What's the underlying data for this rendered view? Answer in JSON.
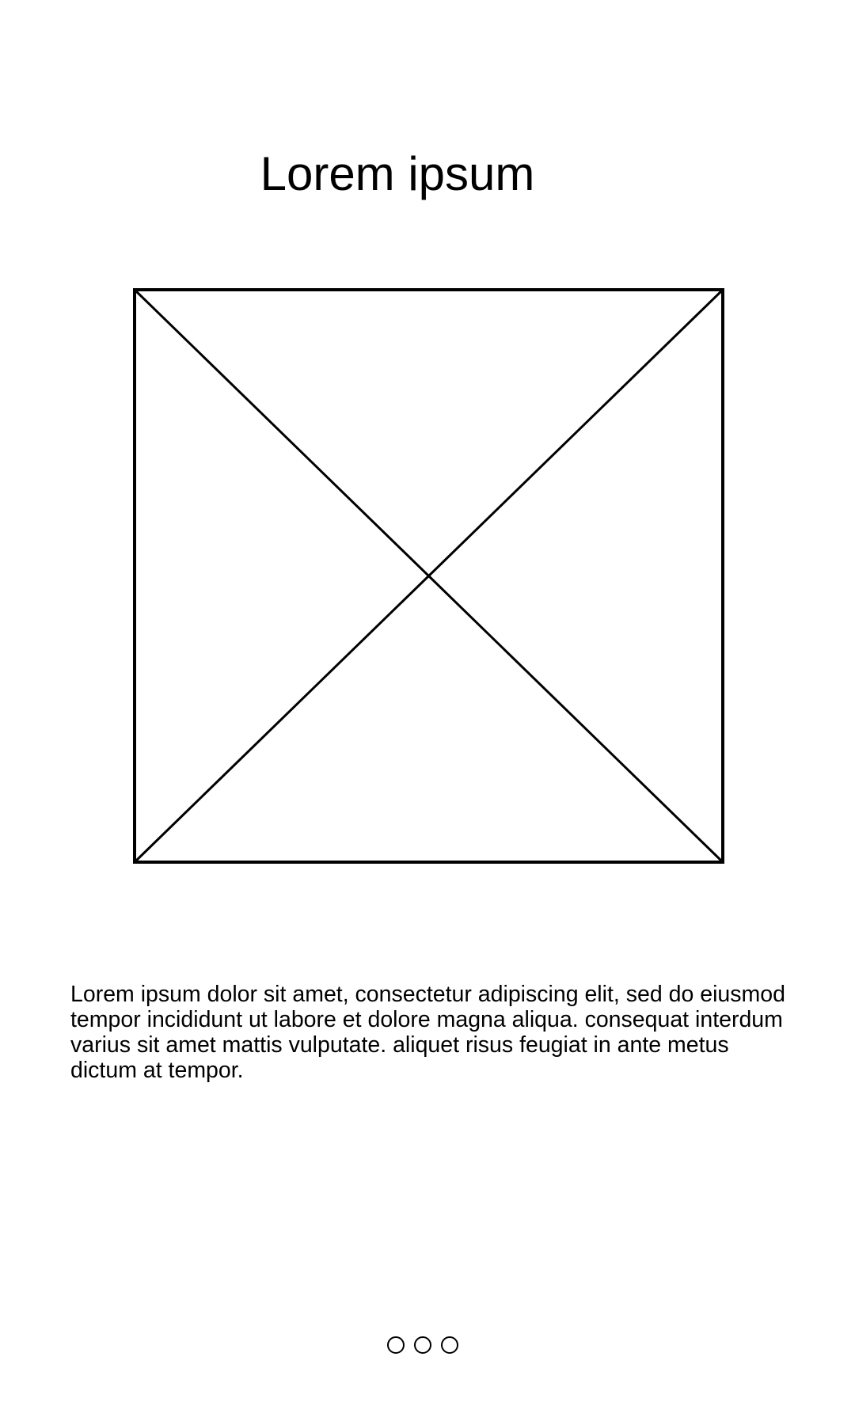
{
  "header": {
    "title": "Lorem ipsum"
  },
  "main": {
    "image": {
      "icon": "image-placeholder-icon"
    },
    "body_text": "Lorem ipsum dolor sit amet, consectetur adipiscing elit, sed do eiusmod tempor incididunt ut labore et dolore magna aliqua. consequat interdum varius sit amet mattis vulputate. aliquet risus feugiat in ante metus dictum at tempor."
  },
  "pagination": {
    "dot_count": 3,
    "dot_style": "hollow-circle"
  }
}
